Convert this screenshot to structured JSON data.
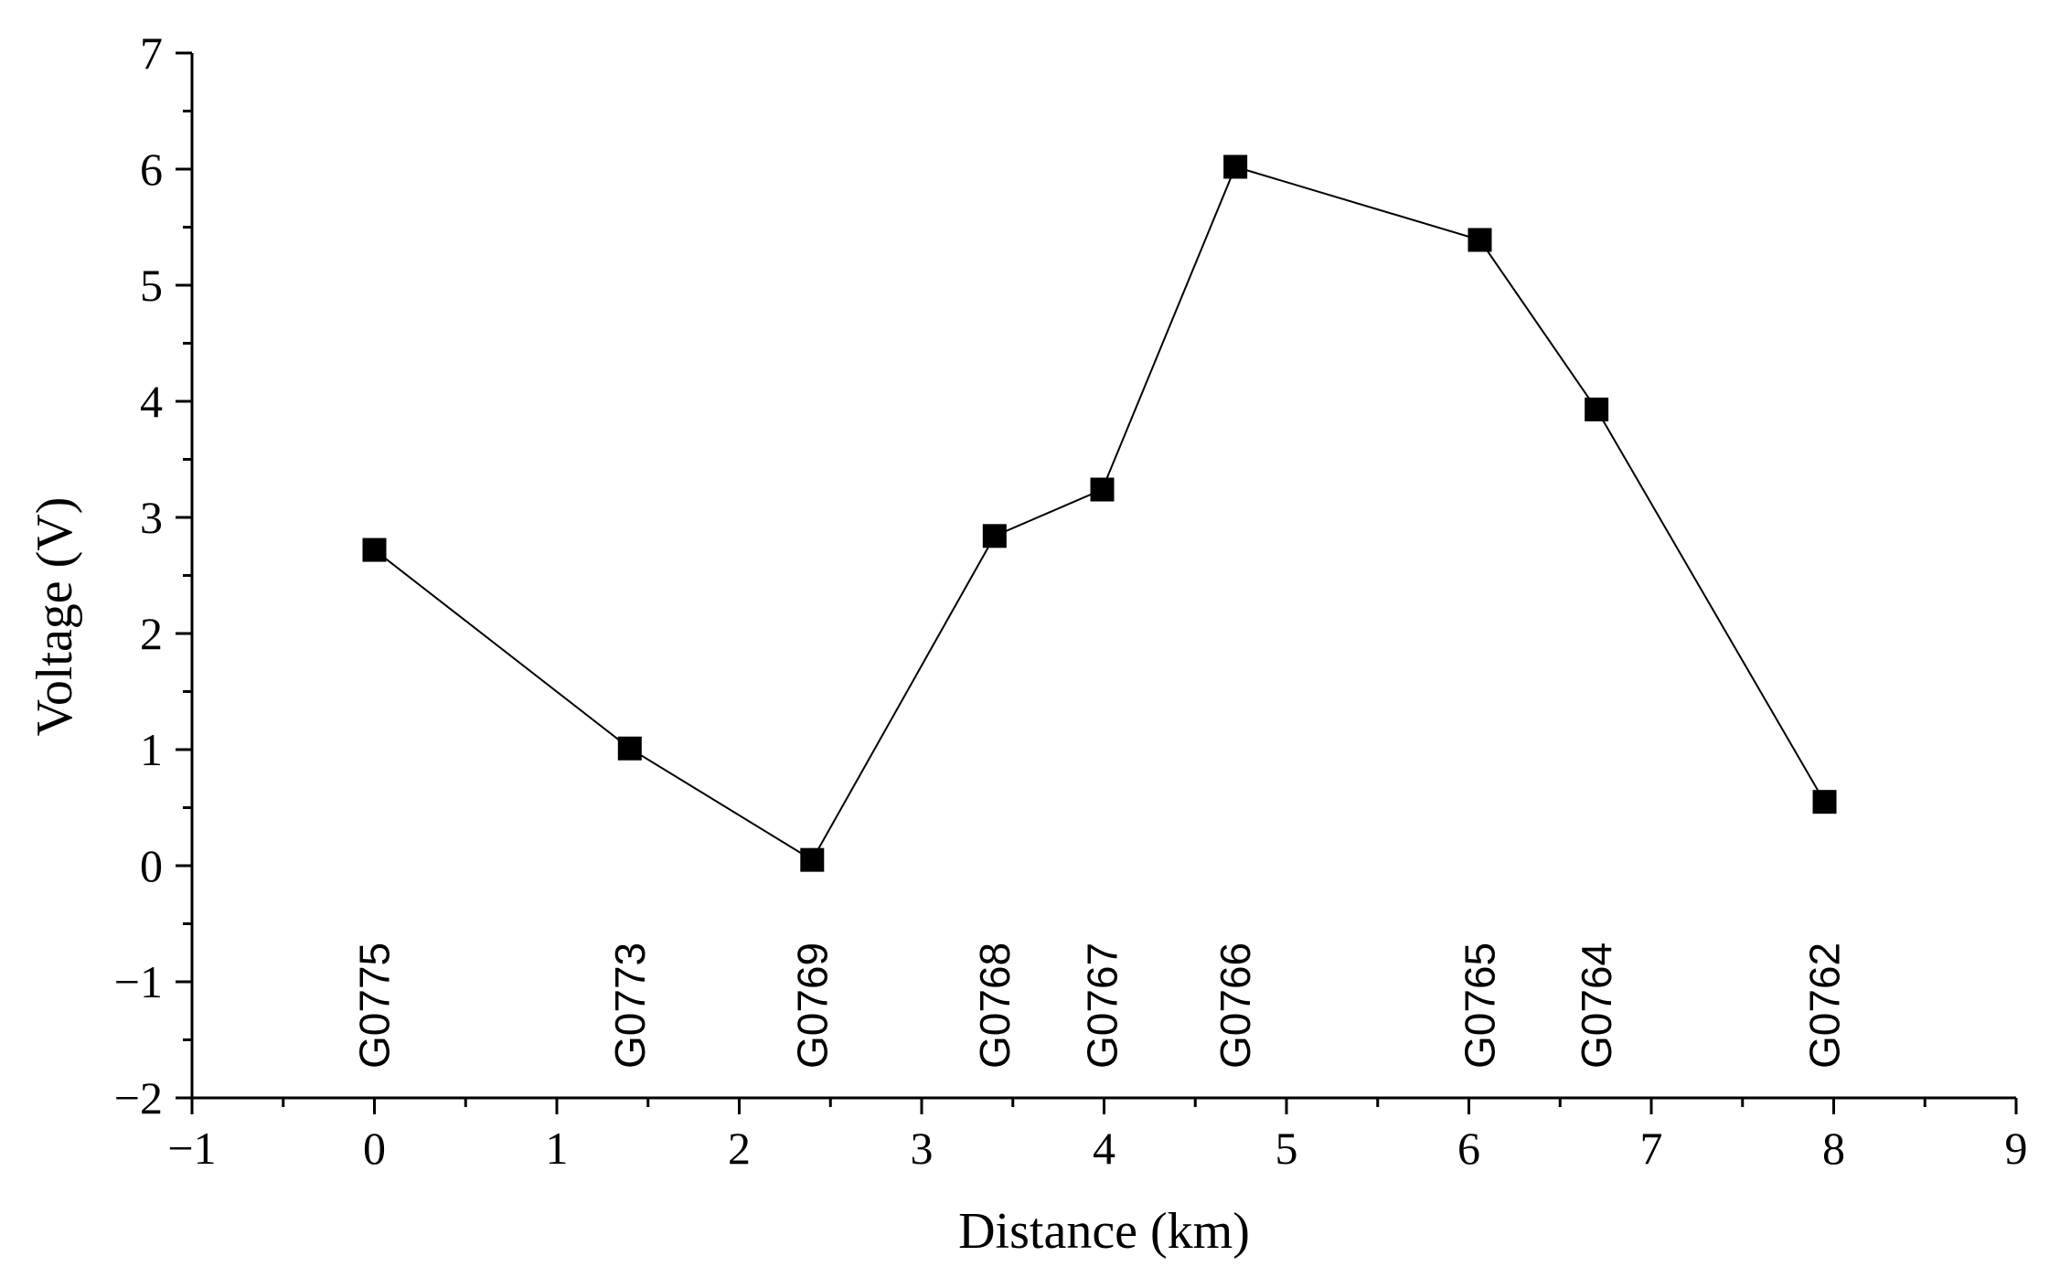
{
  "chart_data": {
    "type": "line",
    "title": "",
    "xlabel": "Distance (km)",
    "ylabel": "Voltage (V)",
    "xlim": [
      -1,
      9
    ],
    "ylim": [
      -2,
      7
    ],
    "x_ticks": [
      -1,
      0,
      1,
      2,
      3,
      4,
      5,
      6,
      7,
      8,
      9
    ],
    "x_tick_labels": [
      "−1",
      "0",
      "1",
      "2",
      "3",
      "4",
      "5",
      "6",
      "7",
      "8",
      "9"
    ],
    "y_ticks": [
      -2,
      -1,
      0,
      1,
      2,
      3,
      4,
      5,
      6,
      7
    ],
    "y_tick_labels": [
      "−2",
      "−1",
      "0",
      "1",
      "2",
      "3",
      "4",
      "5",
      "6",
      "7"
    ],
    "grid": false,
    "legend": "none",
    "marker": "square",
    "line_color": "#000000",
    "marker_color": "#000000",
    "series": [
      {
        "points": [
          {
            "x": 0.0,
            "y": 2.72,
            "label": "G0775"
          },
          {
            "x": 1.4,
            "y": 1.01,
            "label": "G0773"
          },
          {
            "x": 2.4,
            "y": 0.05,
            "label": "G0769"
          },
          {
            "x": 3.4,
            "y": 2.84,
            "label": "G0768"
          },
          {
            "x": 3.99,
            "y": 3.24,
            "label": "G0767"
          },
          {
            "x": 4.72,
            "y": 6.02,
            "label": "G0766"
          },
          {
            "x": 6.06,
            "y": 5.39,
            "label": "G0765"
          },
          {
            "x": 6.7,
            "y": 3.93,
            "label": "G0764"
          },
          {
            "x": 7.95,
            "y": 0.55,
            "label": "G0762"
          }
        ]
      }
    ]
  }
}
